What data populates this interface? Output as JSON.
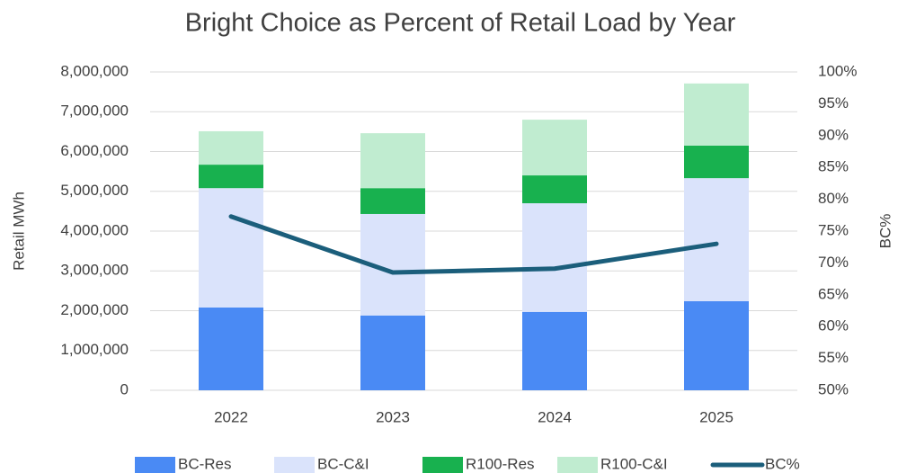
{
  "chart_data": {
    "type": "bar",
    "title": "Bright Choice as Percent of Retail Load by Year",
    "stacked": true,
    "categories": [
      "2022",
      "2023",
      "2024",
      "2025"
    ],
    "series": [
      {
        "name": "BC-Res",
        "color": "#4a8af4",
        "values": [
          2080000,
          1880000,
          1970000,
          2240000
        ]
      },
      {
        "name": "BC-C&I",
        "color": "#dae3fb",
        "values": [
          3000000,
          2550000,
          2730000,
          3090000
        ]
      },
      {
        "name": "R100-Res",
        "color": "#18b14f",
        "values": [
          590000,
          650000,
          700000,
          820000
        ]
      },
      {
        "name": "R100-C&I",
        "color": "#c0ecd0",
        "values": [
          840000,
          1380000,
          1400000,
          1560000
        ]
      },
      {
        "name": "BC%",
        "type": "line",
        "axis": "y2",
        "color": "#1b5e7b",
        "values": [
          77.3,
          68.5,
          69.1,
          73.0
        ]
      }
    ],
    "ylabel": "Retail MWh",
    "y2label": "BC%",
    "ylim": [
      0,
      8000000
    ],
    "yticks": [
      0,
      {
        "value": 1000000,
        "label": "1,000,000"
      },
      {
        "value": 2000000,
        "label": "2,000,000"
      },
      {
        "value": 3000000,
        "label": "3,000,000"
      },
      {
        "value": 4000000,
        "label": "4,000,000"
      },
      {
        "value": 5000000,
        "label": "5,000,000"
      },
      {
        "value": 6000000,
        "label": "6,000,000"
      },
      {
        "value": 7000000,
        "label": "7,000,000"
      },
      {
        "value": 8000000,
        "label": "8,000,000"
      }
    ],
    "y2lim": [
      50,
      100
    ],
    "y2ticks": [
      {
        "value": 50,
        "label": "50%"
      },
      {
        "value": 55,
        "label": "55%"
      },
      {
        "value": 60,
        "label": "60%"
      },
      {
        "value": 65,
        "label": "65%"
      },
      {
        "value": 70,
        "label": "70%"
      },
      {
        "value": 75,
        "label": "75%"
      },
      {
        "value": 80,
        "label": "80%"
      },
      {
        "value": 85,
        "label": "85%"
      },
      {
        "value": 90,
        "label": "90%"
      },
      {
        "value": 95,
        "label": "95%"
      },
      {
        "value": 100,
        "label": "100%"
      }
    ],
    "grid": true,
    "legend": "bottom"
  }
}
